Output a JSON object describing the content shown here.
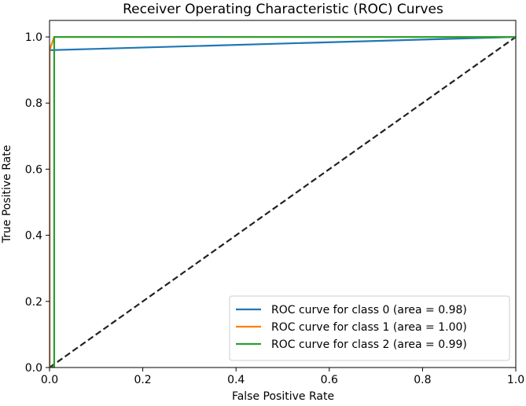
{
  "chart_data": {
    "type": "line",
    "title": "Receiver Operating Characteristic (ROC) Curves",
    "xlabel": "False Positive Rate",
    "ylabel": "True Positive Rate",
    "xlim": [
      0.0,
      1.0
    ],
    "ylim": [
      0.0,
      1.05
    ],
    "x_ticks": [
      0.0,
      0.2,
      0.4,
      0.6,
      0.8,
      1.0
    ],
    "x_tick_labels": [
      "0.0",
      "0.2",
      "0.4",
      "0.6",
      "0.8",
      "1.0"
    ],
    "y_ticks": [
      0.0,
      0.2,
      0.4,
      0.6,
      0.8,
      1.0
    ],
    "y_tick_labels": [
      "0.0",
      "0.2",
      "0.4",
      "0.6",
      "0.8",
      "1.0"
    ],
    "grid": false,
    "legend_position": "bottom-right",
    "series": [
      {
        "name": "ROC curve for class 0 (area = 0.98)",
        "color": "#1f77b4",
        "x": [
          0.0,
          0.0,
          1.0
        ],
        "y": [
          0.0,
          0.96,
          1.0
        ]
      },
      {
        "name": "ROC curve for class 1 (area = 1.00)",
        "color": "#ff7f0e",
        "x": [
          0.0,
          0.0,
          0.01,
          1.0
        ],
        "y": [
          0.0,
          0.96,
          1.0,
          1.0
        ]
      },
      {
        "name": "ROC curve for class 2 (area = 0.99)",
        "color": "#2ca02c",
        "x": [
          0.0,
          0.01,
          0.01,
          1.0
        ],
        "y": [
          0.0,
          0.0,
          1.0,
          1.0
        ]
      }
    ],
    "reference_line": {
      "color": "#222222",
      "style": "dashed",
      "x": [
        0.0,
        1.0
      ],
      "y": [
        0.0,
        1.0
      ]
    }
  }
}
